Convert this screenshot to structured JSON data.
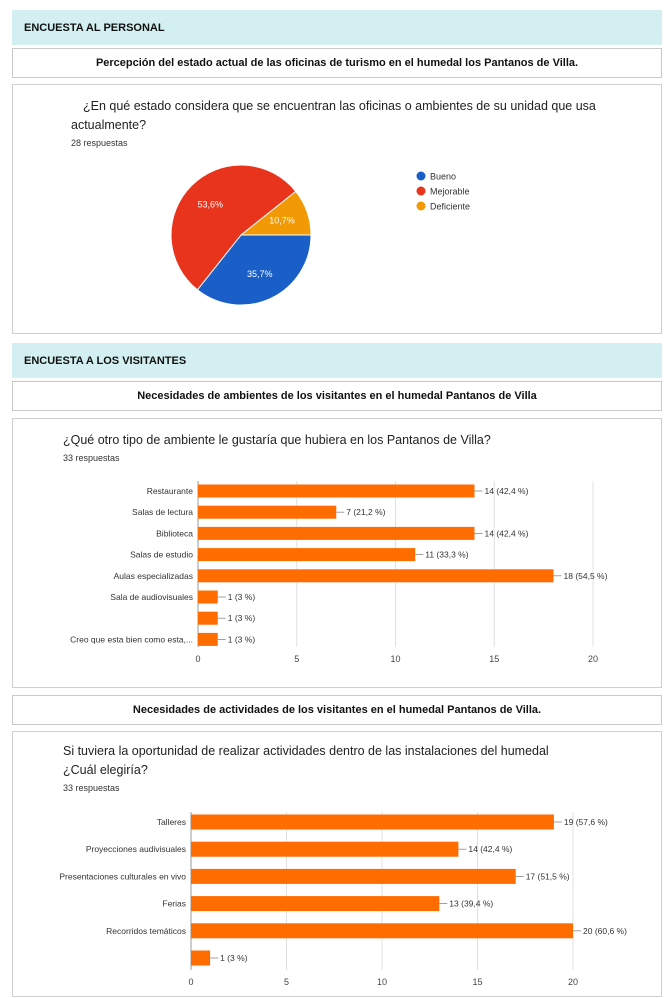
{
  "staff": {
    "header": "ENCUESTA AL PERSONAL",
    "subheader": "Percepción del estado actual de las oficinas de turismo en el humedal los Pantanos de Villa.",
    "question_line1": "¿En qué estado considera que se encuentran las oficinas o ambientes de su unidad que usa",
    "question_line2": "actualmente?",
    "responses": "28 respuestas"
  },
  "visitors": {
    "header": "ENCUESTA A LOS VISITANTES",
    "subheader1": "Necesidades de ambientes de los visitantes en el humedal Pantanos de Villa",
    "question1": "¿Qué otro tipo de ambiente le gustaría que hubiera en los Pantanos de Villa?",
    "responses1": "33 respuestas",
    "subheader2": "Necesidades de actividades de los visitantes en el humedal Pantanos de Villa.",
    "question2_line1": "Si tuviera la oportunidad de realizar actividades dentro de las instalaciones del humedal",
    "question2_line2": "¿Cuál elegiría?",
    "responses2": "33 respuestas"
  },
  "colors": {
    "bueno": "#1a5fc7",
    "mejorable": "#e8341c",
    "deficiente": "#f29a06",
    "bar": "#ff6d00"
  },
  "chart_data": [
    {
      "type": "pie",
      "series": [
        {
          "name": "Bueno",
          "value": 35.7,
          "label": "35,7%"
        },
        {
          "name": "Mejorable",
          "value": 53.6,
          "label": "53,6%"
        },
        {
          "name": "Deficiente",
          "value": 10.7,
          "label": "10,7%"
        }
      ],
      "legend": "right"
    },
    {
      "type": "bar",
      "orientation": "horizontal",
      "categories": [
        "Restaurante",
        "Salas de lectura",
        "Biblioteca",
        "Salas de estudio",
        "Aulas especializadas",
        "Sala de audiovisuales",
        "",
        "Creo que esta bien como esta,..."
      ],
      "values": [
        14,
        7,
        14,
        11,
        18,
        1,
        1,
        1
      ],
      "labels": [
        "14 (42,4 %)",
        "7 (21,2 %)",
        "14 (42,4 %)",
        "11 (33,3 %)",
        "18 (54,5 %)",
        "1 (3 %)",
        "1 (3 %)",
        "1 (3 %)"
      ],
      "xlim": [
        0,
        20
      ],
      "xticks": [
        "0",
        "5",
        "10",
        "15",
        "20"
      ],
      "grid": true
    },
    {
      "type": "bar",
      "orientation": "horizontal",
      "categories": [
        "Talleres",
        "Proyecciones audivisuales",
        "Presentaciones culturales en vivo",
        "Ferias",
        "Recorridos temáticos",
        ""
      ],
      "values": [
        19,
        14,
        17,
        13,
        20,
        1
      ],
      "labels": [
        "19 (57,6 %)",
        "14 (42,4 %)",
        "17 (51,5 %)",
        "13 (39,4 %)",
        "20 (60,6 %)",
        "1 (3 %)"
      ],
      "xlim": [
        0,
        20
      ],
      "xticks": [
        "0",
        "5",
        "10",
        "15",
        "20"
      ],
      "grid": true
    }
  ]
}
